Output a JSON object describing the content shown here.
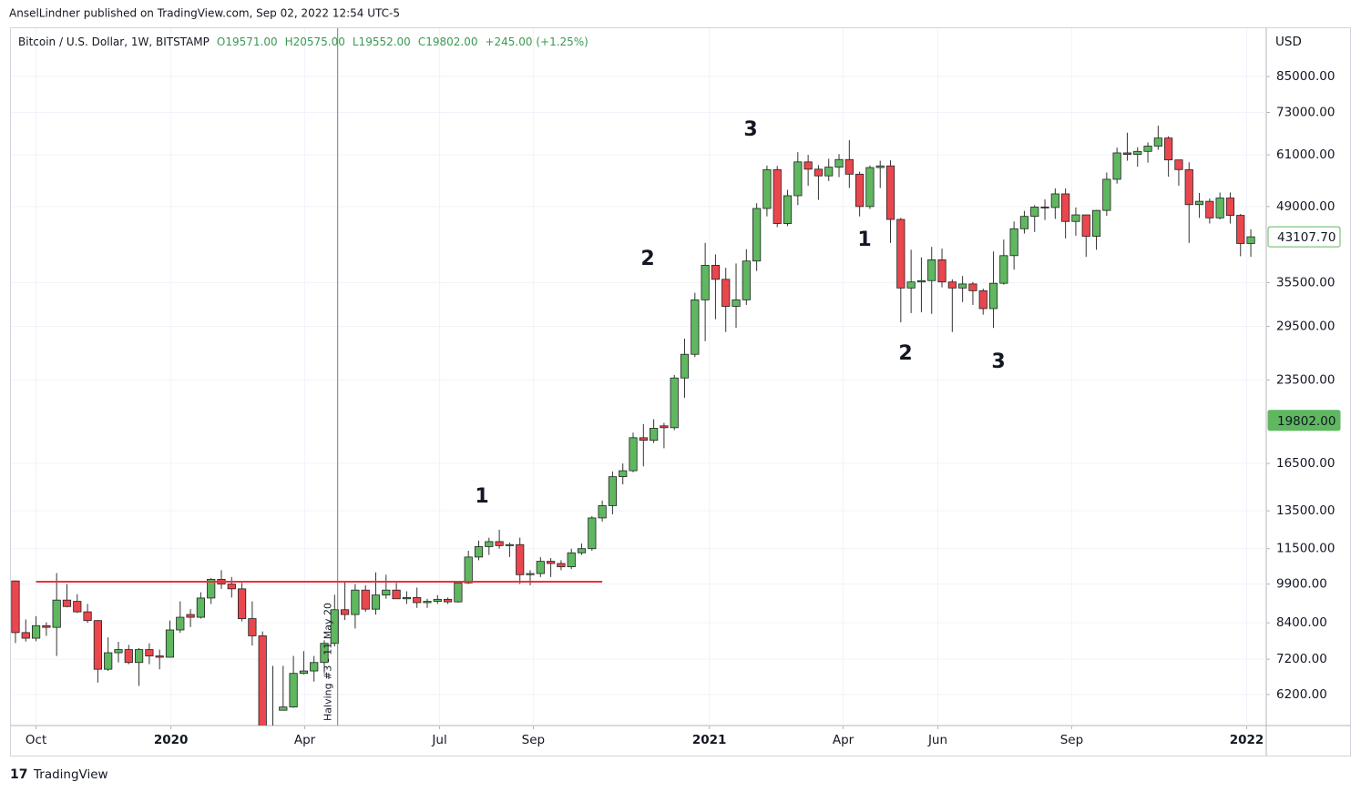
{
  "header": {
    "publisher": "AnselLindner published on TradingView.com, Sep 02, 2022 12:54 UTC-5",
    "symbol": "Bitcoin / U.S. Dollar, 1W, BITSTAMP",
    "ohlc": [
      "O19571.00",
      "H20575.00",
      "L19552.00",
      "C19802.00",
      "+245.00 (+1.25%)"
    ],
    "footer": "TradingView"
  },
  "chart_data": {
    "type": "candlestick",
    "log_scale": true,
    "grid": true,
    "y_unit": "USD",
    "up_color": "#5fb760",
    "down_color": "#e9474d",
    "open": [
      10030,
      8060,
      7870,
      8300,
      8240,
      9250,
      9200,
      8800,
      8480,
      6900,
      7400,
      7500,
      7100,
      7500,
      7300,
      7260,
      8150,
      8700,
      8600,
      9330,
      10100,
      9900,
      9700,
      8550,
      7950,
      5370,
      5800,
      5880,
      6780,
      6850,
      7100,
      7700,
      8880,
      8700,
      9650,
      8900,
      9450,
      9650,
      9300,
      9350,
      9150,
      9200,
      9280,
      9180,
      9950,
      11100,
      11600,
      11850,
      11650,
      11700,
      10300,
      10350,
      10900,
      10800,
      10650,
      11300,
      11500,
      13100,
      13800,
      15600,
      16000,
      18400,
      18200,
      19350,
      19200,
      23700,
      26200,
      33000,
      38200,
      36000,
      32100,
      33000,
      38900,
      48600,
      57300,
      45600,
      51300,
      59200,
      57400,
      55800,
      57900,
      59800,
      56200,
      49000,
      57800,
      58200,
      46400,
      34700,
      35600,
      35800,
      39100,
      35600,
      34700,
      35300,
      34300,
      31800,
      35400,
      39800,
      44600,
      47000,
      48900,
      48800,
      51700,
      46000,
      47300,
      43200,
      48200,
      55000,
      61500,
      61100,
      61900,
      63300,
      65500,
      59700,
      57300,
      49400,
      50100,
      46700,
      50800,
      47200,
      41900
    ],
    "high": [
      10050,
      8520,
      8640,
      8420,
      10370,
      9900,
      9480,
      9100,
      8500,
      7900,
      7750,
      7650,
      7550,
      7700,
      7500,
      8480,
      9200,
      8900,
      9560,
      10150,
      10500,
      10200,
      9950,
      9200,
      8100,
      7000,
      7000,
      7300,
      7450,
      7300,
      7800,
      9460,
      10000,
      9900,
      9850,
      10400,
      10300,
      9950,
      9600,
      9750,
      9300,
      9450,
      9350,
      10000,
      11400,
      11900,
      12050,
      12460,
      11800,
      12050,
      10500,
      11100,
      11050,
      10950,
      11500,
      11750,
      13200,
      14100,
      15950,
      16500,
      18800,
      19500,
      19900,
      19600,
      24000,
      28000,
      34000,
      42000,
      40000,
      37800,
      38500,
      40900,
      49700,
      58300,
      58200,
      52600,
      61700,
      61000,
      58400,
      60000,
      61200,
      64900,
      56800,
      58300,
      59500,
      59600,
      46700,
      40800,
      39500,
      41300,
      41000,
      36000,
      36500,
      35600,
      34600,
      40500,
      42600,
      46000,
      48100,
      49300,
      50500,
      52900,
      52900,
      48800,
      47300,
      48300,
      56600,
      62900,
      67000,
      63000,
      64300,
      69000,
      66000,
      59700,
      59100,
      51900,
      50700,
      52000,
      52000,
      47500,
      44500
    ],
    "low": [
      7710,
      7760,
      7770,
      7950,
      7300,
      8970,
      8760,
      8400,
      6520,
      6850,
      7100,
      7050,
      6430,
      7050,
      6900,
      7250,
      8050,
      8250,
      8550,
      9100,
      9700,
      9350,
      8450,
      7630,
      3850,
      5000,
      5850,
      5860,
      6750,
      6550,
      6800,
      7600,
      8500,
      8200,
      8800,
      8700,
      9300,
      9300,
      9100,
      8950,
      8950,
      9100,
      9100,
      9150,
      9900,
      10950,
      11200,
      11500,
      11100,
      9900,
      9850,
      10200,
      10200,
      10500,
      10550,
      11200,
      11400,
      12900,
      13300,
      15100,
      15900,
      16300,
      18000,
      17600,
      19000,
      21800,
      25900,
      27700,
      30400,
      28800,
      29300,
      32300,
      37300,
      47000,
      44900,
      45100,
      49300,
      53500,
      50400,
      54600,
      55500,
      53000,
      47000,
      48500,
      53000,
      42000,
      30000,
      31200,
      31300,
      31100,
      34800,
      28800,
      32700,
      32300,
      31000,
      29300,
      35200,
      37500,
      43700,
      44000,
      46300,
      46500,
      42800,
      43300,
      39600,
      40800,
      47100,
      54000,
      59500,
      58000,
      59000,
      62300,
      55600,
      53500,
      42000,
      46700,
      45600,
      46400,
      45600,
      39700,
      39600
    ],
    "close": [
      8060,
      7870,
      8300,
      8240,
      9250,
      9000,
      8800,
      8480,
      6900,
      7400,
      7500,
      7100,
      7500,
      7300,
      7260,
      8150,
      8600,
      8600,
      9330,
      10100,
      9900,
      9700,
      8550,
      7950,
      5370,
      5100,
      5880,
      6780,
      6850,
      7100,
      7700,
      8880,
      8700,
      9650,
      8900,
      9450,
      9650,
      9300,
      9350,
      9150,
      9200,
      9280,
      9180,
      9950,
      11100,
      11600,
      11850,
      11650,
      11700,
      10300,
      10350,
      10900,
      10800,
      10650,
      11300,
      11500,
      13100,
      13800,
      15600,
      16000,
      18400,
      18200,
      19150,
      19200,
      23700,
      26200,
      33000,
      38200,
      36000,
      32100,
      33000,
      38900,
      48600,
      57300,
      45600,
      51300,
      59200,
      57400,
      55800,
      57900,
      59800,
      56200,
      49000,
      57800,
      58200,
      46400,
      34700,
      35600,
      35800,
      39100,
      35600,
      34700,
      35300,
      34300,
      31800,
      35400,
      39800,
      44600,
      47000,
      48900,
      48800,
      51700,
      46000,
      47300,
      43200,
      48200,
      55000,
      61500,
      61100,
      61900,
      63300,
      65500,
      59700,
      57300,
      49400,
      50100,
      46700,
      50800,
      47200,
      41900,
      43107.7
    ],
    "xlim": [
      -0.44,
      121.5
    ],
    "xticks": [
      {
        "value": 2.0,
        "label": "Oct"
      },
      {
        "value": 15.1,
        "label": "2020",
        "bold": true
      },
      {
        "value": 28.1,
        "label": "Apr"
      },
      {
        "value": 41.2,
        "label": "Jul"
      },
      {
        "value": 50.3,
        "label": "Sep"
      },
      {
        "value": 67.4,
        "label": "2021",
        "bold": true
      },
      {
        "value": 80.4,
        "label": "Apr"
      },
      {
        "value": 89.6,
        "label": "Jun"
      },
      {
        "value": 102.6,
        "label": "Sep"
      },
      {
        "value": 119.6,
        "label": "2022",
        "bold": true
      }
    ],
    "ylim": [
      5436,
      104300
    ],
    "yticks": [
      {
        "value": 85000,
        "label": "85000.00"
      },
      {
        "value": 73000,
        "label": "73000.00"
      },
      {
        "value": 61000,
        "label": "61000.00"
      },
      {
        "value": 49000,
        "label": "49000.00"
      },
      {
        "value": 35500,
        "label": "35500.00"
      },
      {
        "value": 29500,
        "label": "29500.00"
      },
      {
        "value": 23500,
        "label": "23500.00"
      },
      {
        "value": 16500,
        "label": "16500.00"
      },
      {
        "value": 13500,
        "label": "13500.00"
      },
      {
        "value": 11500,
        "label": "11500.00"
      },
      {
        "value": 9900,
        "label": "9900.00"
      },
      {
        "value": 8400,
        "label": "8400.00"
      },
      {
        "value": 7200,
        "label": "7200.00"
      },
      {
        "value": 6200,
        "label": "6200.00"
      }
    ],
    "price_labels": [
      {
        "value": 43107.7,
        "label": "43107.70",
        "style": "outline"
      },
      {
        "value": 19802,
        "label": "19802.00",
        "style": "filled"
      }
    ],
    "hline": {
      "value": 10000,
      "from": 2,
      "to": 57,
      "color": "#e8323c"
    },
    "vline": {
      "value": 31.3,
      "label": "Halving #3 - 11 May 20"
    },
    "annotations": [
      {
        "text": "1"
      },
      {
        "text": "2"
      },
      {
        "text": "3"
      },
      {
        "text": "1"
      },
      {
        "text": "2"
      },
      {
        "text": "3"
      }
    ]
  }
}
